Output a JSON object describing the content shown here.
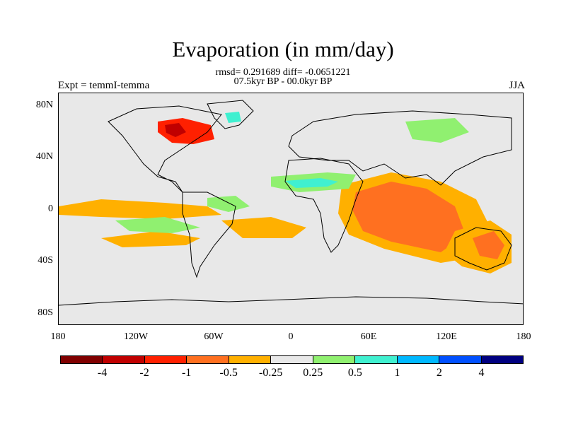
{
  "title": "Evaporation (in mm/day)",
  "stats_line": "rmsd= 0.291689 diff= -0.0651221",
  "period_line": "07.5kyr BP - 00.0kyr BP",
  "experiment_label": "Expt = temmI-temma",
  "season_label": "JJA",
  "y_axis_labels": [
    "80N",
    "40N",
    "0",
    "40S",
    "80S"
  ],
  "x_axis_labels": [
    "180",
    "120W",
    "60W",
    "0",
    "60E",
    "120E",
    "180"
  ],
  "colorbar": {
    "colors": [
      "#800000",
      "#c00000",
      "#ff2000",
      "#ff7020",
      "#ffb000",
      "#e8e8e8",
      "#90f070",
      "#40f0d0",
      "#00b8ff",
      "#0050ff",
      "#000080"
    ],
    "labels": [
      "-4",
      "-2",
      "-1",
      "-0.5",
      "-0.25",
      "0.25",
      "0.5",
      "1",
      "2",
      "4"
    ]
  },
  "colors": {
    "ocean_land_background": "#e8e8e8",
    "coastline": "#000000"
  }
}
